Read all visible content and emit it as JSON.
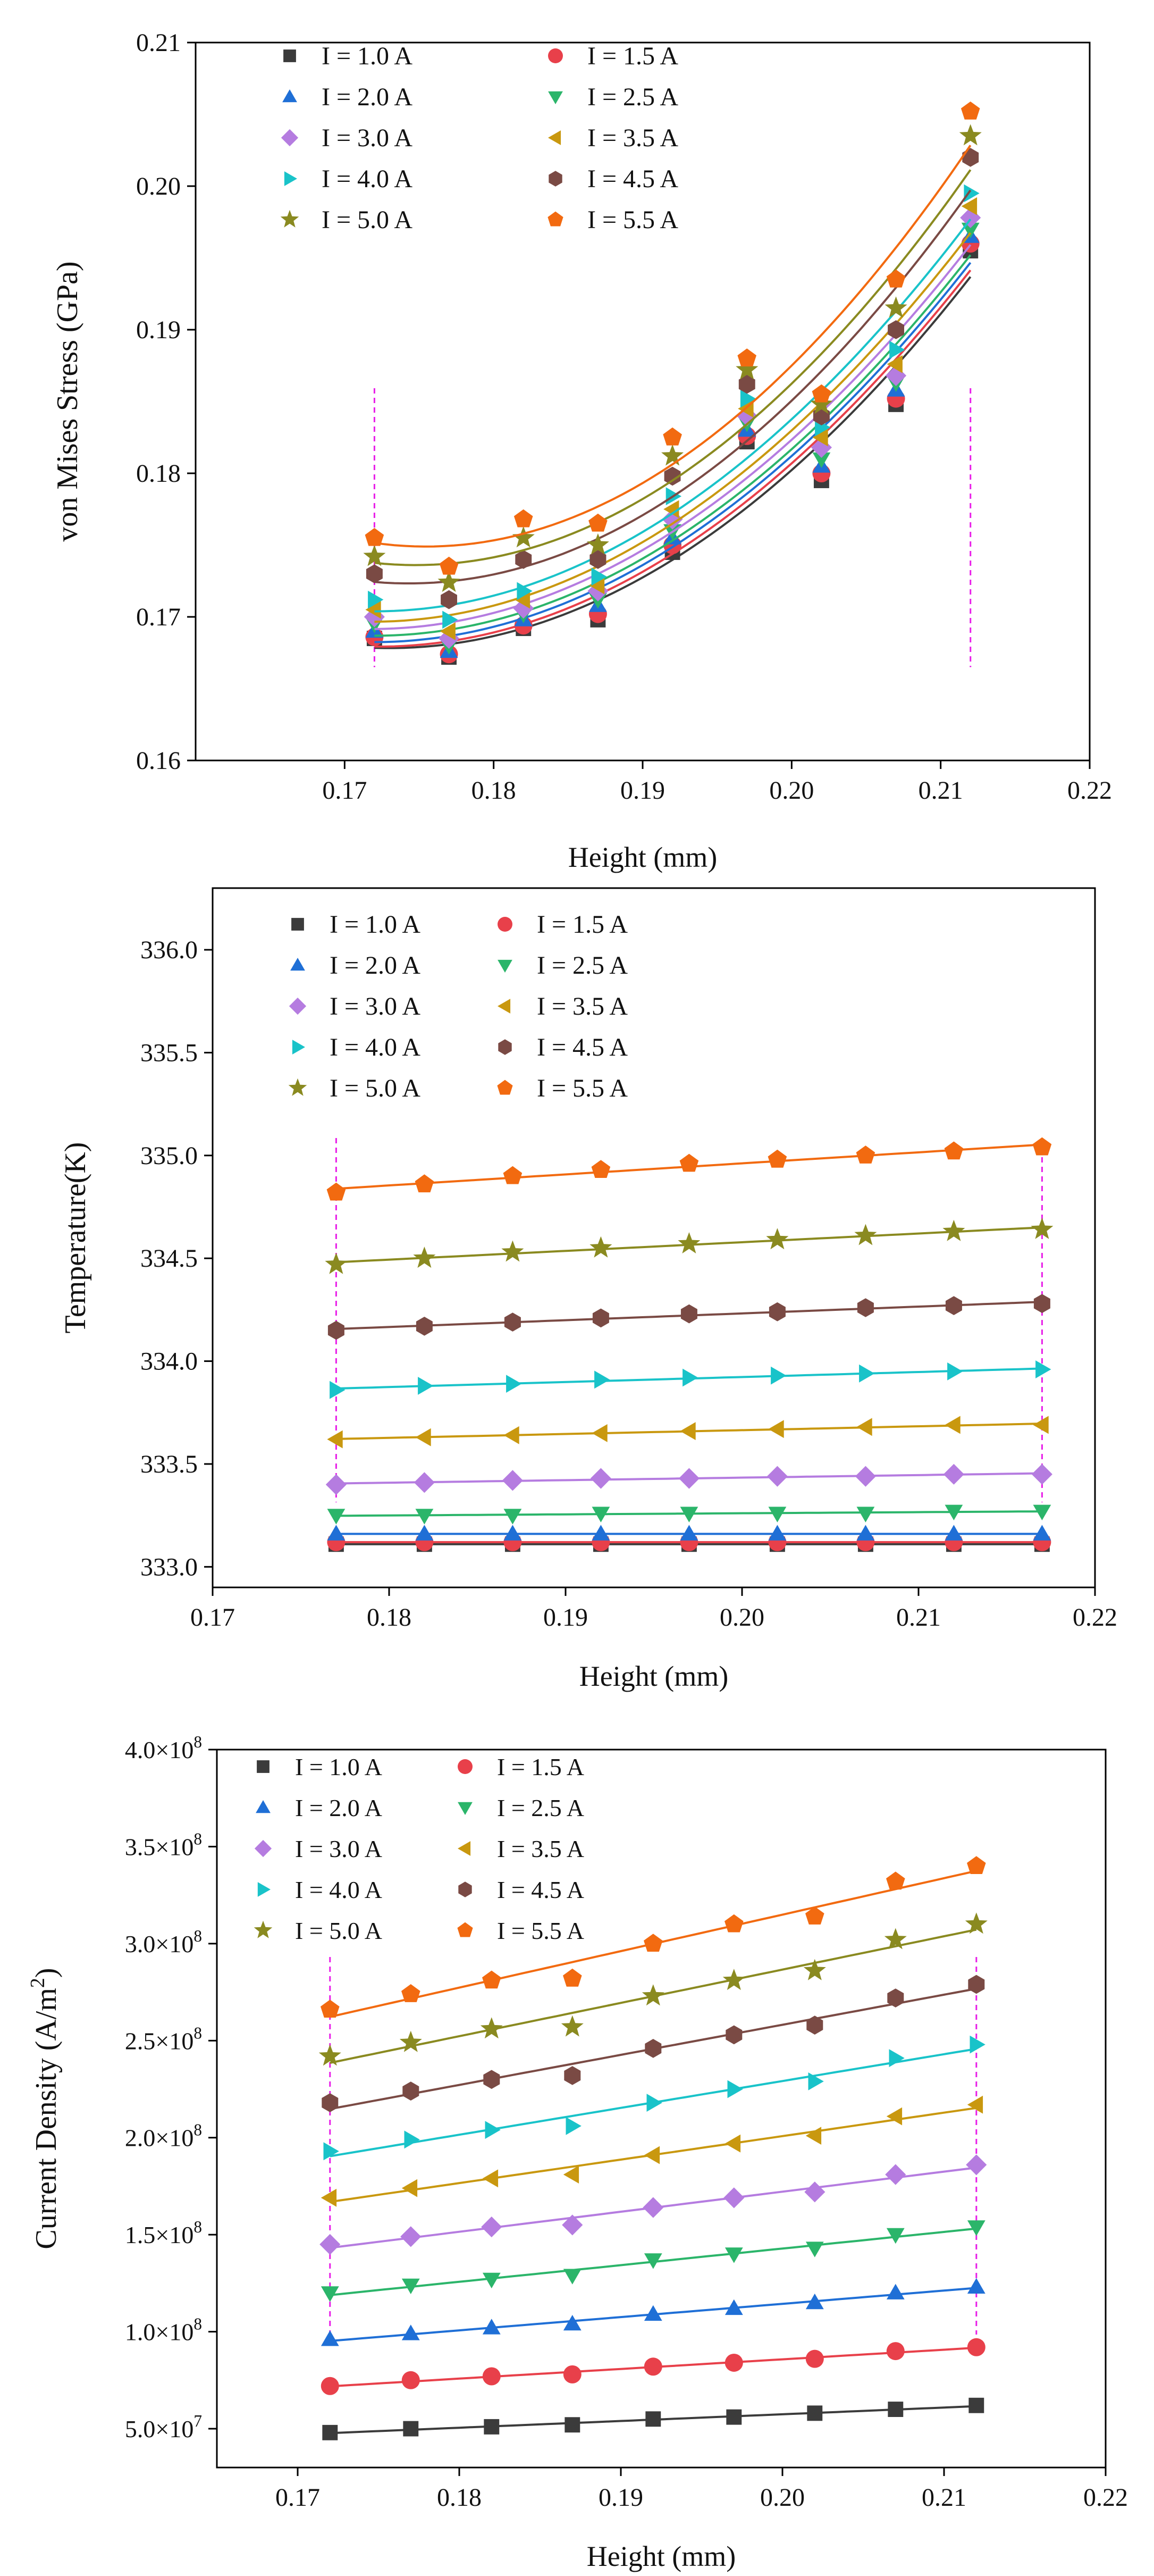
{
  "legend_labels": [
    "I = 1.0 A",
    "I = 1.5 A",
    "I = 2.0 A",
    "I = 2.5 A",
    "I = 3.0 A",
    "I = 3.5 A",
    "I = 4.0 A",
    "I = 4.5 A",
    "I = 5.0 A",
    "I = 5.5 A"
  ],
  "series_style": [
    {
      "color": "#3b3b3b",
      "marker": "square"
    },
    {
      "color": "#e8404a",
      "marker": "circle"
    },
    {
      "color": "#1f6fd6",
      "marker": "triangle-up"
    },
    {
      "color": "#2bb56a",
      "marker": "triangle-down"
    },
    {
      "color": "#b57ce0",
      "marker": "diamond"
    },
    {
      "color": "#c9980f",
      "marker": "triangle-left"
    },
    {
      "color": "#19c3c9",
      "marker": "triangle-right"
    },
    {
      "color": "#7a4a44",
      "marker": "hexagon"
    },
    {
      "color": "#8a8a20",
      "marker": "star"
    },
    {
      "color": "#f26a10",
      "marker": "pentagon"
    }
  ],
  "chart_data": [
    {
      "type": "scatter",
      "title": "",
      "xlabel": "Height (mm)",
      "ylabel": "von Mises Stress (GPa)",
      "xlim": [
        0.16,
        0.22
      ],
      "ylim": [
        0.16,
        0.21
      ],
      "xticks": [
        0.17,
        0.18,
        0.19,
        0.2,
        0.21,
        0.22
      ],
      "xtick_labels": [
        "0.17",
        "0.18",
        "0.19",
        "0.20",
        "0.21",
        "0.22"
      ],
      "yticks": [
        0.16,
        0.17,
        0.18,
        0.19,
        0.2,
        0.21
      ],
      "ytick_labels": [
        "0.16",
        "0.17",
        "0.18",
        "0.19",
        "0.20",
        "0.21"
      ],
      "x": [
        0.172,
        0.177,
        0.182,
        0.187,
        0.192,
        0.197,
        0.202,
        0.207,
        0.212
      ],
      "fit": "quadratic",
      "series": [
        {
          "name": "I = 1.0 A",
          "values": [
            0.1685,
            0.1672,
            0.1692,
            0.1698,
            0.1745,
            0.1822,
            0.1795,
            0.1848,
            0.1955
          ]
        },
        {
          "name": "I = 1.5 A",
          "values": [
            0.1686,
            0.1674,
            0.1694,
            0.1702,
            0.175,
            0.1826,
            0.18,
            0.1852,
            0.196
          ]
        },
        {
          "name": "I = 2.0 A",
          "values": [
            0.169,
            0.1676,
            0.1698,
            0.1708,
            0.1755,
            0.183,
            0.1805,
            0.1858,
            0.1965
          ]
        },
        {
          "name": "I = 2.5 A",
          "values": [
            0.1695,
            0.168,
            0.1702,
            0.1712,
            0.176,
            0.1835,
            0.181,
            0.1863,
            0.197
          ]
        },
        {
          "name": "I = 3.0 A",
          "values": [
            0.17,
            0.1685,
            0.1706,
            0.1718,
            0.1768,
            0.184,
            0.1818,
            0.1868,
            0.1978
          ]
        },
        {
          "name": "I = 3.5 A",
          "values": [
            0.1705,
            0.169,
            0.1712,
            0.1722,
            0.1775,
            0.1845,
            0.1825,
            0.1876,
            0.1986
          ]
        },
        {
          "name": "I = 4.0 A",
          "values": [
            0.1712,
            0.1698,
            0.1718,
            0.1728,
            0.1784,
            0.1852,
            0.1832,
            0.1886,
            0.1995
          ]
        },
        {
          "name": "I = 4.5 A",
          "values": [
            0.173,
            0.1712,
            0.174,
            0.174,
            0.1798,
            0.1862,
            0.184,
            0.19,
            0.202
          ]
        },
        {
          "name": "I = 5.0 A",
          "values": [
            0.1742,
            0.1724,
            0.1755,
            0.175,
            0.1812,
            0.1872,
            0.1848,
            0.1915,
            0.2035
          ]
        },
        {
          "name": "I = 5.5 A",
          "values": [
            0.1755,
            0.1735,
            0.1768,
            0.1765,
            0.1825,
            0.188,
            0.1855,
            0.1935,
            0.2052
          ]
        }
      ]
    },
    {
      "type": "line",
      "title": "",
      "xlabel": "Height (mm)",
      "ylabel": "Temperature(K)",
      "xlim": [
        0.17,
        0.22
      ],
      "ylim": [
        332.9,
        336.3
      ],
      "xticks": [
        0.17,
        0.18,
        0.19,
        0.2,
        0.21,
        0.22
      ],
      "xtick_labels": [
        "0.17",
        "0.18",
        "0.19",
        "0.20",
        "0.21",
        "0.22"
      ],
      "yticks": [
        333.0,
        333.5,
        334.0,
        334.5,
        335.0,
        335.5,
        336.0
      ],
      "ytick_labels": [
        "333.0",
        "333.5",
        "334.0",
        "334.5",
        "335.0",
        "335.5",
        "336.0"
      ],
      "x": [
        0.177,
        0.182,
        0.187,
        0.192,
        0.197,
        0.202,
        0.207,
        0.212,
        0.217
      ],
      "fit": "linear",
      "series": [
        {
          "name": "I = 1.0 A",
          "values": [
            333.11,
            333.11,
            333.11,
            333.11,
            333.11,
            333.11,
            333.11,
            333.11,
            333.11
          ]
        },
        {
          "name": "I = 1.5 A",
          "values": [
            333.12,
            333.12,
            333.12,
            333.12,
            333.12,
            333.12,
            333.12,
            333.12,
            333.12
          ]
        },
        {
          "name": "I = 2.0 A",
          "values": [
            333.16,
            333.16,
            333.16,
            333.16,
            333.16,
            333.16,
            333.16,
            333.16,
            333.16
          ]
        },
        {
          "name": "I = 2.5 A",
          "values": [
            333.25,
            333.25,
            333.25,
            333.26,
            333.26,
            333.26,
            333.26,
            333.27,
            333.27
          ]
        },
        {
          "name": "I = 3.0 A",
          "values": [
            333.4,
            333.41,
            333.42,
            333.43,
            333.43,
            333.44,
            333.44,
            333.45,
            333.45
          ]
        },
        {
          "name": "I = 3.5 A",
          "values": [
            333.62,
            333.63,
            333.64,
            333.65,
            333.66,
            333.67,
            333.68,
            333.69,
            333.69
          ]
        },
        {
          "name": "I = 4.0 A",
          "values": [
            333.86,
            333.88,
            333.89,
            333.91,
            333.92,
            333.93,
            333.94,
            333.95,
            333.96
          ]
        },
        {
          "name": "I = 4.5 A",
          "values": [
            334.15,
            334.17,
            334.19,
            334.21,
            334.23,
            334.24,
            334.26,
            334.27,
            334.28
          ]
        },
        {
          "name": "I = 5.0 A",
          "values": [
            334.47,
            334.5,
            334.53,
            334.55,
            334.57,
            334.59,
            334.61,
            334.63,
            334.64
          ]
        },
        {
          "name": "I = 5.5 A",
          "values": [
            334.82,
            334.86,
            334.9,
            334.93,
            334.96,
            334.98,
            335.0,
            335.02,
            335.04
          ]
        }
      ]
    },
    {
      "type": "line",
      "title": "",
      "xlabel": "Height (mm)",
      "ylabel": "Current Density (A/m²)",
      "xlim": [
        0.165,
        0.22
      ],
      "ylim": [
        30000000,
        400000000
      ],
      "xticks": [
        0.17,
        0.18,
        0.19,
        0.2,
        0.21,
        0.22
      ],
      "xtick_labels": [
        "0.17",
        "0.18",
        "0.19",
        "0.20",
        "0.21",
        "0.22"
      ],
      "yticks": [
        50000000,
        100000000,
        150000000,
        200000000,
        250000000,
        300000000,
        350000000,
        400000000
      ],
      "ytick_labels": [
        {
          "m": "5.0",
          "e": "7"
        },
        {
          "m": "1.0",
          "e": "8"
        },
        {
          "m": "1.5",
          "e": "8"
        },
        {
          "m": "2.0",
          "e": "8"
        },
        {
          "m": "2.5",
          "e": "8"
        },
        {
          "m": "3.0",
          "e": "8"
        },
        {
          "m": "3.5",
          "e": "8"
        },
        {
          "m": "4.0",
          "e": "8"
        }
      ],
      "x": [
        0.172,
        0.177,
        0.182,
        0.187,
        0.192,
        0.197,
        0.202,
        0.207,
        0.212
      ],
      "fit": "linear",
      "series": [
        {
          "name": "I = 1.0 A",
          "values": [
            48000000,
            50000000,
            51000000,
            52000000,
            55000000,
            56000000,
            58000000,
            60000000,
            62000000
          ]
        },
        {
          "name": "I = 1.5 A",
          "values": [
            72000000,
            75000000,
            77000000,
            78000000,
            82000000,
            84000000,
            86000000,
            90000000,
            92000000
          ]
        },
        {
          "name": "I = 2.0 A",
          "values": [
            96000000,
            99000000,
            102000000,
            104000000,
            109000000,
            112000000,
            115000000,
            120000000,
            123000000
          ]
        },
        {
          "name": "I = 2.5 A",
          "values": [
            120000000,
            124000000,
            127000000,
            129000000,
            137000000,
            140000000,
            143000000,
            150000000,
            154000000
          ]
        },
        {
          "name": "I = 3.0 A",
          "values": [
            145000000,
            149000000,
            154000000,
            155000000,
            164000000,
            169000000,
            172000000,
            181000000,
            186000000
          ]
        },
        {
          "name": "I = 3.5 A",
          "values": [
            169000000,
            174000000,
            179000000,
            181000000,
            191000000,
            197000000,
            201000000,
            211000000,
            217000000
          ]
        },
        {
          "name": "I = 4.0 A",
          "values": [
            193000000,
            199000000,
            204000000,
            206000000,
            218000000,
            225000000,
            229000000,
            241000000,
            248000000
          ]
        },
        {
          "name": "I = 4.5 A",
          "values": [
            218000000,
            224000000,
            230000000,
            232000000,
            246000000,
            253000000,
            258000000,
            272000000,
            279000000
          ]
        },
        {
          "name": "I = 5.0 A",
          "values": [
            242000000,
            249000000,
            256000000,
            257000000,
            273000000,
            281000000,
            286000000,
            302000000,
            310000000
          ]
        },
        {
          "name": "I = 5.5 A",
          "values": [
            266000000,
            274000000,
            281000000,
            282000000,
            300000000,
            310000000,
            314000000,
            332000000,
            340000000
          ]
        }
      ]
    }
  ]
}
